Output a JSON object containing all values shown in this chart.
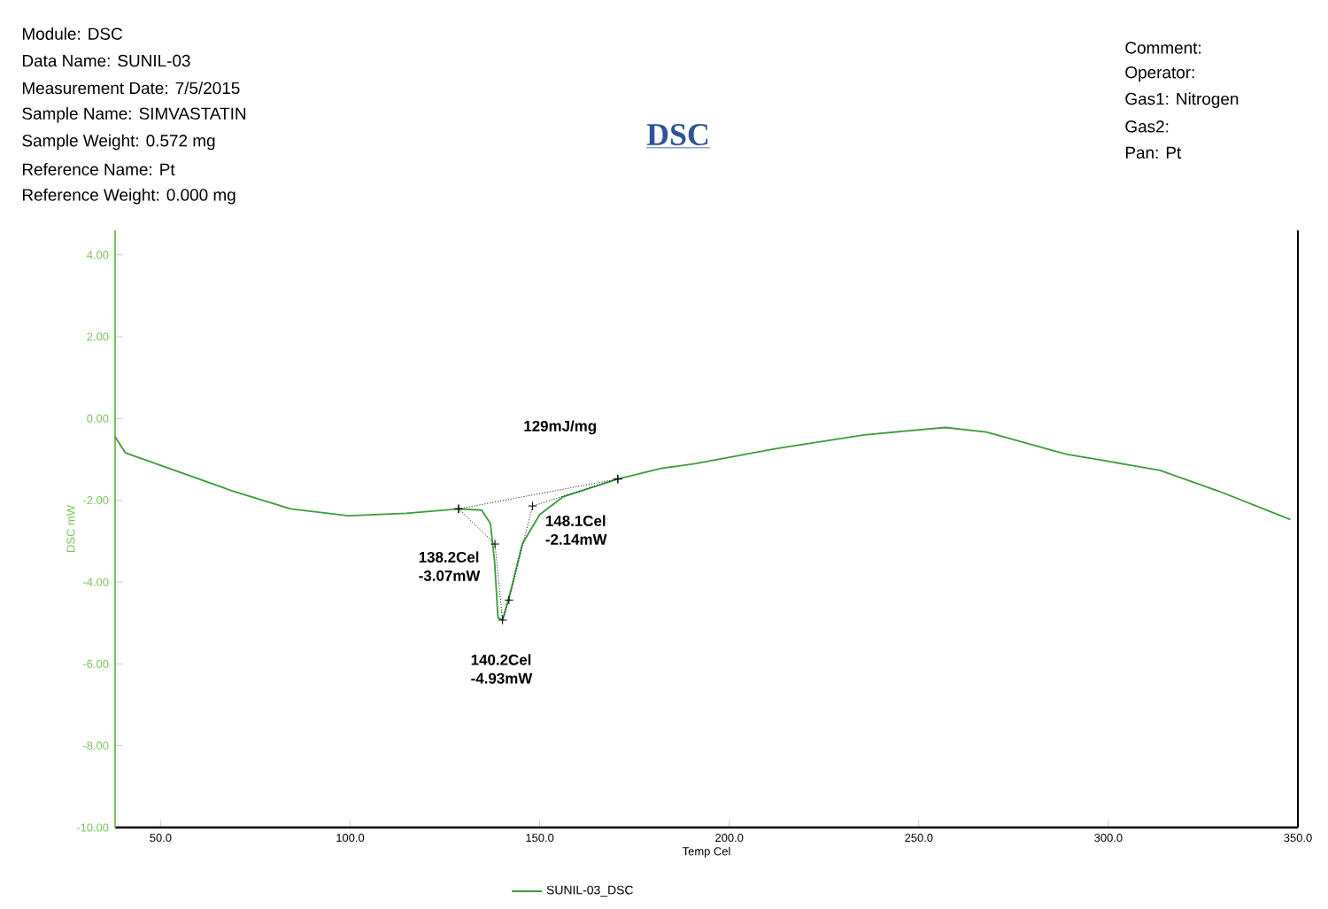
{
  "chart_data": {
    "type": "line",
    "title": "DSC",
    "xlabel": "Temp Cel",
    "ylabel": "DSC mW",
    "xlim": [
      38,
      350
    ],
    "ylim": [
      -10,
      4.6
    ],
    "xticks": [
      {
        "value": 50,
        "label": "50.0"
      },
      {
        "value": 100,
        "label": "100.0"
      },
      {
        "value": 150,
        "label": "150.0"
      },
      {
        "value": 200,
        "label": "200.0"
      },
      {
        "value": 250,
        "label": "250.0"
      },
      {
        "value": 300,
        "label": "300.0"
      },
      {
        "value": 350,
        "label": "350.0"
      }
    ],
    "yticks": [
      {
        "value": -10,
        "label": "-10.00"
      },
      {
        "value": -8,
        "label": "-8.00"
      },
      {
        "value": -6,
        "label": "-6.00"
      },
      {
        "value": -4,
        "label": "-4.00"
      },
      {
        "value": -2,
        "label": "-2.00"
      },
      {
        "value": 0,
        "label": "0.00"
      },
      {
        "value": 2,
        "label": "2.00"
      },
      {
        "value": 4,
        "label": "4.00"
      }
    ],
    "legend": "bottom",
    "series": [
      {
        "name": "SUNIL-03_DSC",
        "color": "#3c9b3c",
        "marker": "none",
        "line_style": "solid",
        "x": [
          38,
          40.7,
          53.7,
          68.9,
          84.3,
          99.5,
          114.8,
          128.6,
          134.7,
          137.0,
          138.1,
          139.0,
          140.2,
          142.3,
          145.4,
          150,
          156.1,
          170.6,
          182.1,
          191.3,
          212.7,
          235.6,
          257.0,
          267.8,
          289.1,
          298.3,
          313.6,
          328.9,
          348.0
        ],
        "values": [
          -0.45,
          -0.84,
          -1.27,
          -1.77,
          -2.21,
          -2.38,
          -2.32,
          -2.21,
          -2.24,
          -2.57,
          -3.5,
          -4.87,
          -4.93,
          -4.23,
          -3.07,
          -2.35,
          -1.92,
          -1.48,
          -1.22,
          -1.1,
          -0.73,
          -0.4,
          -0.22,
          -0.33,
          -0.88,
          -1.02,
          -1.27,
          -1.77,
          -2.47
        ]
      },
      {
        "color": "#000000",
        "marker": "cross",
        "line_style": "dotted",
        "x": [
          128.6,
          170.6
        ],
        "values": [
          -2.21,
          -1.48
        ]
      },
      {
        "color": "#000000",
        "marker": "cross",
        "line_style": "dotted",
        "x": [
          128.6,
          138.2,
          140.2,
          141.9,
          148.1,
          170.6
        ],
        "values": [
          -2.21,
          -3.07,
          -4.93,
          -4.44,
          -2.14,
          -1.48
        ]
      }
    ],
    "annotations": [
      "Module:      DSC",
      "Data Name:      SUNIL-03",
      "Measurement Date:  7/5/2015",
      "Sample Name:     SIMVASTATIN",
      "Sample Weight:    0.572  mg",
      "Reference Name:    Pt",
      "Reference Weight:  0.000  mg",
      "Comment:",
      "Operator:",
      "Gas1: Nitrogen",
      "Gas2:",
      "Pan: Pt",
      "129mJ/mg",
      {
        "text": "138.2Cel -3.07mW",
        "x": 138.2,
        "y": -3.07
      },
      {
        "text": "140.2Cel -4.93mW",
        "x": 140.2,
        "y": -4.93
      },
      {
        "text": "148.1Cel -2.14mW",
        "x": 148.1,
        "y": -2.14
      }
    ]
  }
}
